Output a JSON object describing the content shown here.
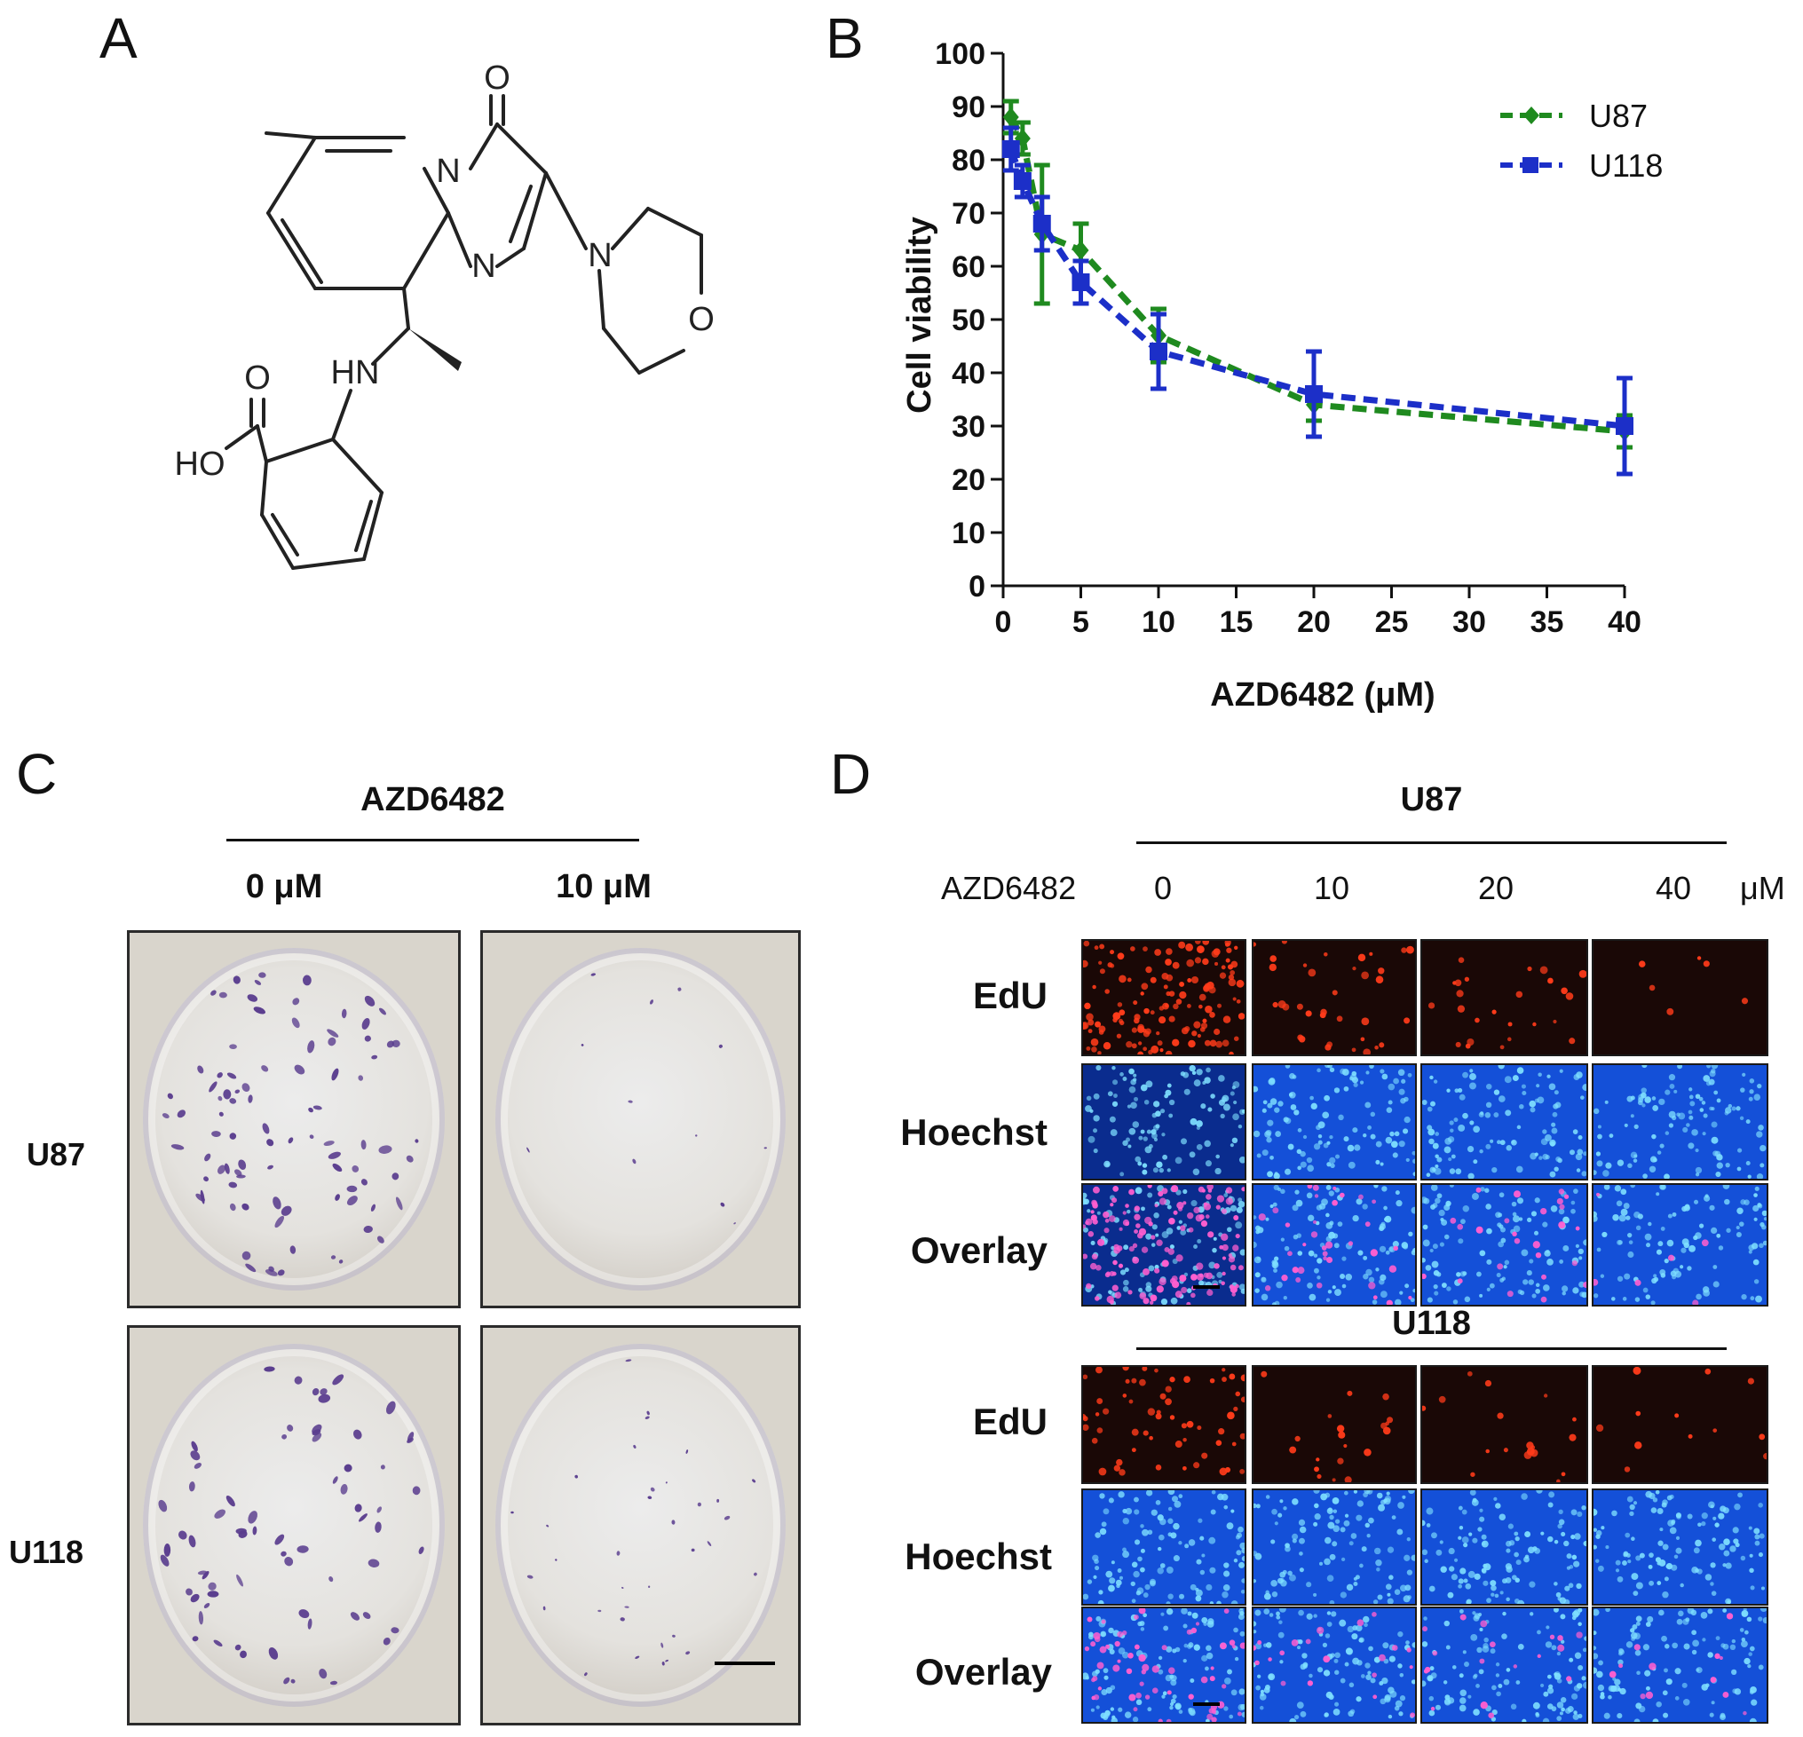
{
  "panels": {
    "a": {
      "letter": "A"
    },
    "b": {
      "letter": "B"
    },
    "c": {
      "letter": "C"
    },
    "d": {
      "letter": "D"
    }
  },
  "structure": {
    "atoms": {
      "O_top": "O",
      "N_ring": "N",
      "N_bridge": "N",
      "N_morph": "N",
      "O_morph": "O",
      "O_acid": "O",
      "HN": "HN",
      "HO": "HO"
    }
  },
  "chart_data": {
    "type": "line",
    "title": "",
    "xlabel": "AZD6482 (μM)",
    "ylabel": "Cell viability",
    "xlim": [
      0,
      40
    ],
    "ylim": [
      0,
      100
    ],
    "x_ticks": [
      "0",
      "5",
      "10",
      "15",
      "20",
      "25",
      "30",
      "35",
      "40"
    ],
    "y_ticks": [
      "0",
      "10",
      "20",
      "30",
      "40",
      "50",
      "60",
      "70",
      "80",
      "90",
      "100"
    ],
    "legend_position": "top-right",
    "series": [
      {
        "name": "U87",
        "color": "#1f8a1f",
        "marker": "diamond",
        "x": [
          0.5,
          1.25,
          2.5,
          5,
          10,
          20,
          40
        ],
        "y": [
          88,
          84,
          66,
          63,
          47,
          34,
          29
        ],
        "err": [
          3,
          3,
          13,
          5,
          5,
          3,
          3
        ]
      },
      {
        "name": "U118",
        "color": "#1c2fc8",
        "marker": "square",
        "x": [
          0.5,
          1.25,
          2.5,
          5,
          10,
          20,
          40
        ],
        "y": [
          82,
          76,
          68,
          57,
          44,
          36,
          30
        ],
        "err": [
          4,
          3,
          5,
          4,
          7,
          8,
          9
        ]
      }
    ]
  },
  "panel_c": {
    "header": "AZD6482",
    "dose_labels": [
      "0 μM",
      "10 μM"
    ],
    "row_labels": [
      "U87",
      "U118"
    ],
    "stain_color": "#5a3d8e",
    "colony_counts": [
      [
        90,
        12
      ],
      [
        70,
        35
      ]
    ]
  },
  "panel_d": {
    "group_labels": [
      "U87",
      "U118"
    ],
    "drug_label": "AZD6482",
    "doses": [
      "0",
      "10",
      "20",
      "40"
    ],
    "unit": "μM",
    "row_labels": [
      "EdU",
      "Hoechst",
      "Overlay"
    ],
    "edu_color": "#ff3b1a",
    "hoechst_color": "#2e8fff",
    "overlay_color": "#ff5fd0",
    "edu_counts": [
      [
        140,
        35,
        25,
        6
      ],
      [
        60,
        20,
        18,
        12
      ]
    ]
  }
}
